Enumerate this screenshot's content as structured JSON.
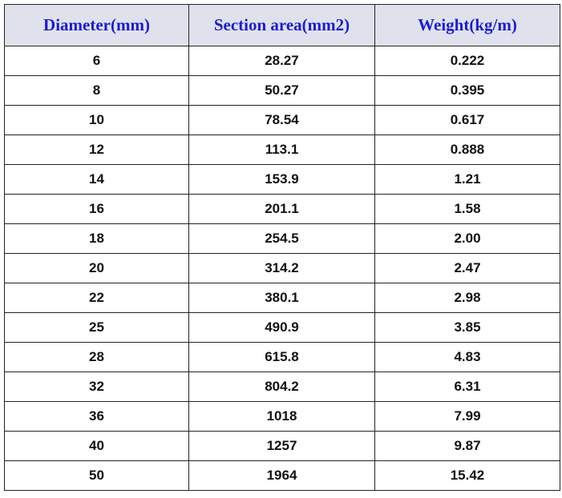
{
  "table": {
    "header": [
      "Diameter(mm)",
      "Section area(mm2)",
      "Weight(kg/m)"
    ],
    "rows": [
      [
        "6",
        "28.27",
        "0.222"
      ],
      [
        "8",
        "50.27",
        "0.395"
      ],
      [
        "10",
        "78.54",
        "0.617"
      ],
      [
        "12",
        "113.1",
        "0.888"
      ],
      [
        "14",
        "153.9",
        "1.21"
      ],
      [
        "16",
        "201.1",
        "1.58"
      ],
      [
        "18",
        "254.5",
        "2.00"
      ],
      [
        "20",
        "314.2",
        "2.47"
      ],
      [
        "22",
        "380.1",
        "2.98"
      ],
      [
        "25",
        "490.9",
        "3.85"
      ],
      [
        "28",
        "615.8",
        "4.83"
      ],
      [
        "32",
        "804.2",
        "6.31"
      ],
      [
        "36",
        "1018",
        "7.99"
      ],
      [
        "40",
        "1257",
        "9.87"
      ],
      [
        "50",
        "1964",
        "15.42"
      ]
    ]
  }
}
